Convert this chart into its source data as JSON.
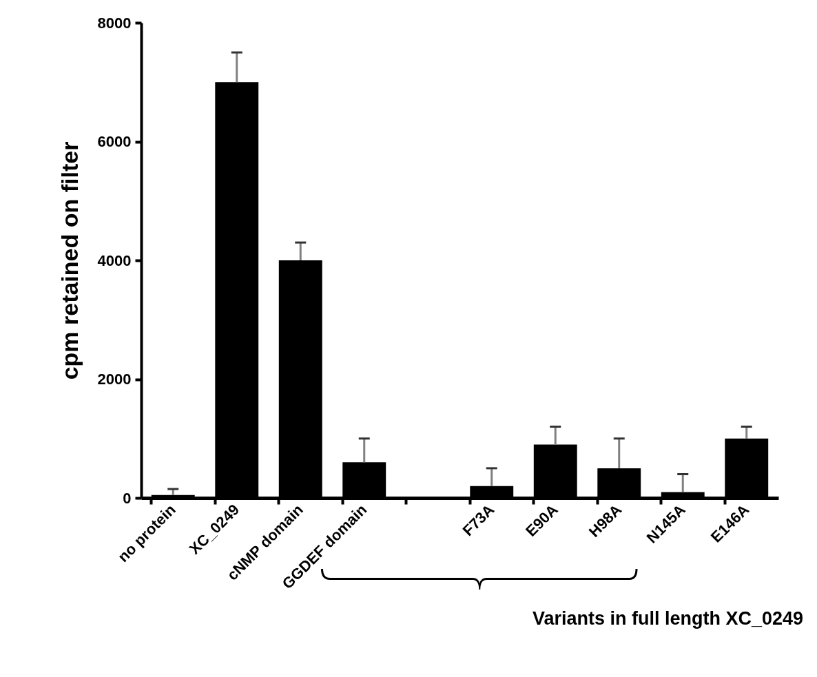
{
  "chart_data": {
    "type": "bar",
    "ylabel": "cpm retained on filter",
    "categories": [
      "no protein",
      "XC_0249",
      "cNMP domain",
      "GGDEF domain",
      null,
      "F73A",
      "E90A",
      "H98A",
      "N145A",
      "E146A"
    ],
    "values": [
      50,
      7000,
      4000,
      600,
      null,
      200,
      900,
      500,
      100,
      1000
    ],
    "errors": [
      [
        50,
        150
      ],
      [
        7000,
        7500
      ],
      [
        4000,
        4300
      ],
      [
        600,
        1000
      ],
      null,
      [
        200,
        500
      ],
      [
        900,
        1200
      ],
      [
        500,
        1000
      ],
      [
        100,
        400
      ],
      [
        1000,
        1200
      ]
    ],
    "color": "#000000",
    "ylim": [
      0,
      8000
    ],
    "yticks": [
      0,
      2000,
      4000,
      6000,
      8000
    ],
    "grid": false,
    "annotations": [
      "Variants in full length XC_0249"
    ]
  }
}
